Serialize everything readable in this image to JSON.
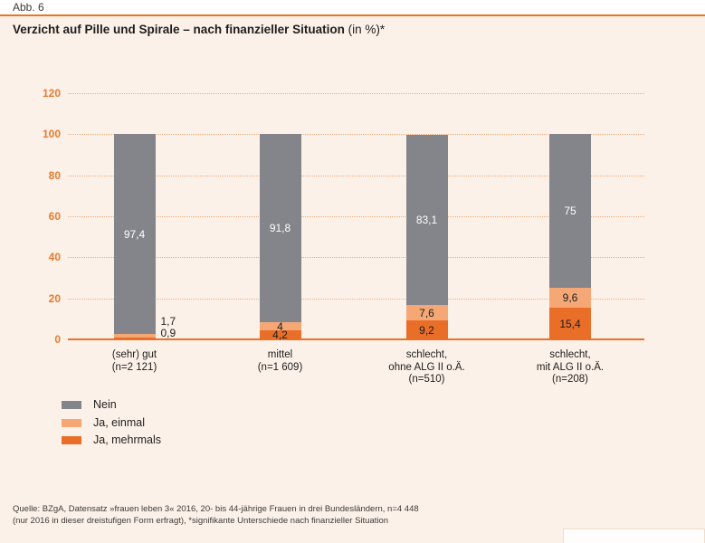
{
  "figure": {
    "label": "Abb. 6",
    "title": "Verzicht auf Pille und Spirale – nach finanzieller Situation",
    "title_suffix": " (in %)*"
  },
  "colors": {
    "background": "#fcf1e9",
    "top_strip": "#ffffff",
    "rule_orange": "#e87425",
    "axis_text_orange": "#e87a2e",
    "gridline_orange": "#f0ab7a",
    "nein_gray": "#84858a",
    "ja_einmal_light_orange": "#f5a876",
    "ja_mehrmals_dark_orange": "#e96e28",
    "value_on_gray": "#ffffff",
    "text_dark": "#1d1d1b"
  },
  "chart_data": {
    "type": "bar",
    "stacked": true,
    "title": "Verzicht auf Pille und Spirale – nach finanzieller Situation (in %)*",
    "unit": "percent",
    "xlabel": "",
    "ylabel": "",
    "ylim": [
      0,
      120
    ],
    "yticks": [
      0,
      20,
      40,
      60,
      80,
      100,
      120
    ],
    "grid": "horizontal-dotted",
    "legend_position": "bottom-left",
    "stack_order_bottom_to_top": [
      "Ja, mehrmals",
      "Ja, einmal",
      "Nein"
    ],
    "categories": [
      {
        "label_lines": [
          "(sehr) gut",
          "(n=2 121)"
        ],
        "small_labels_outside": true
      },
      {
        "label_lines": [
          "mittel",
          "(n=1 609)"
        ],
        "small_labels_outside": false
      },
      {
        "label_lines": [
          "schlecht,",
          "ohne ALG II o.Ä.",
          "(n=510)"
        ],
        "small_labels_outside": false
      },
      {
        "label_lines": [
          "schlecht,",
          "mit ALG II o.Ä.",
          "(n=208)"
        ],
        "small_labels_outside": false
      }
    ],
    "series": [
      {
        "name": "Nein",
        "key": "nein",
        "color": "#84858a",
        "values": [
          97.4,
          91.8,
          83.1,
          75
        ]
      },
      {
        "name": "Ja, einmal",
        "key": "ja_einmal",
        "color": "#f5a876",
        "values": [
          1.7,
          4,
          7.6,
          9.6
        ]
      },
      {
        "name": "Ja, mehrmals",
        "key": "ja_mehrmals",
        "color": "#e96e28",
        "values": [
          0.9,
          4.2,
          9.2,
          15.4
        ]
      }
    ],
    "value_labels": [
      [
        "97,4",
        "1,7",
        "0,9"
      ],
      [
        "91,8",
        "4",
        "4,2"
      ],
      [
        "83,1",
        "7,6",
        "9,2"
      ],
      [
        "75",
        "9,6",
        "15,4"
      ]
    ]
  },
  "legend": {
    "items": [
      {
        "label": "Nein",
        "color": "#84858a"
      },
      {
        "label": "Ja, einmal",
        "color": "#f5a876"
      },
      {
        "label": "Ja, mehrmals",
        "color": "#e96e28"
      }
    ]
  },
  "footer": {
    "line1": "Quelle: BZgA, Datensatz »frauen leben 3« 2016, 20- bis 44-jährige Frauen in drei Bundesländern, n=4 448",
    "line2": "(nur 2016 in dieser dreistufigen Form erfragt), *signifikante Unterschiede nach finanzieller Situation"
  }
}
